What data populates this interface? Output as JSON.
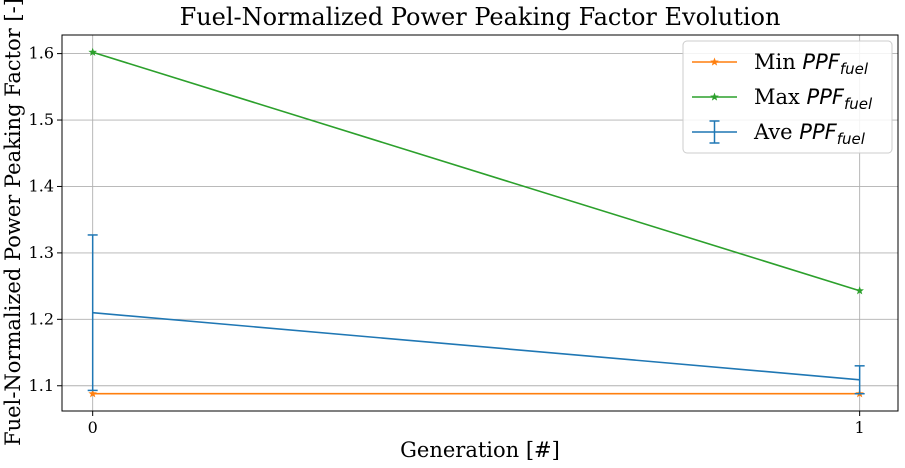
{
  "chart_data": {
    "type": "line",
    "title": "Fuel-Normalized Power Peaking Factor Evolution",
    "xlabel": "Generation [#]",
    "ylabel": "Fuel-Normalized Power Peaking Factor [-]",
    "x": [
      0,
      1
    ],
    "xticks": [
      "0",
      "1"
    ],
    "yticks": [
      "1.1",
      "1.2",
      "1.3",
      "1.4",
      "1.5",
      "1.6"
    ],
    "xlim": [
      -0.04,
      1.05
    ],
    "ylim": [
      1.062,
      1.628
    ],
    "grid": true,
    "legend_position": "top-right",
    "series": [
      {
        "name": "Min PPF_fuel",
        "legend_prefix": "Min ",
        "legend_base": "PPF",
        "legend_sub": "fuel",
        "values": [
          1.088,
          1.088
        ],
        "color": "#ff7f0e",
        "marker": "star"
      },
      {
        "name": "Max PPF_fuel",
        "legend_prefix": "Max ",
        "legend_base": "PPF",
        "legend_sub": "fuel",
        "values": [
          1.602,
          1.243
        ],
        "color": "#2ca02c",
        "marker": "star"
      },
      {
        "name": "Ave PPF_fuel",
        "legend_prefix": "Ave ",
        "legend_base": "PPF",
        "legend_sub": "fuel",
        "values": [
          1.21,
          1.109
        ],
        "error_low": [
          1.093,
          1.088
        ],
        "error_high": [
          1.327,
          1.13
        ],
        "color": "#1f77b4",
        "marker": "errorbar"
      }
    ]
  }
}
